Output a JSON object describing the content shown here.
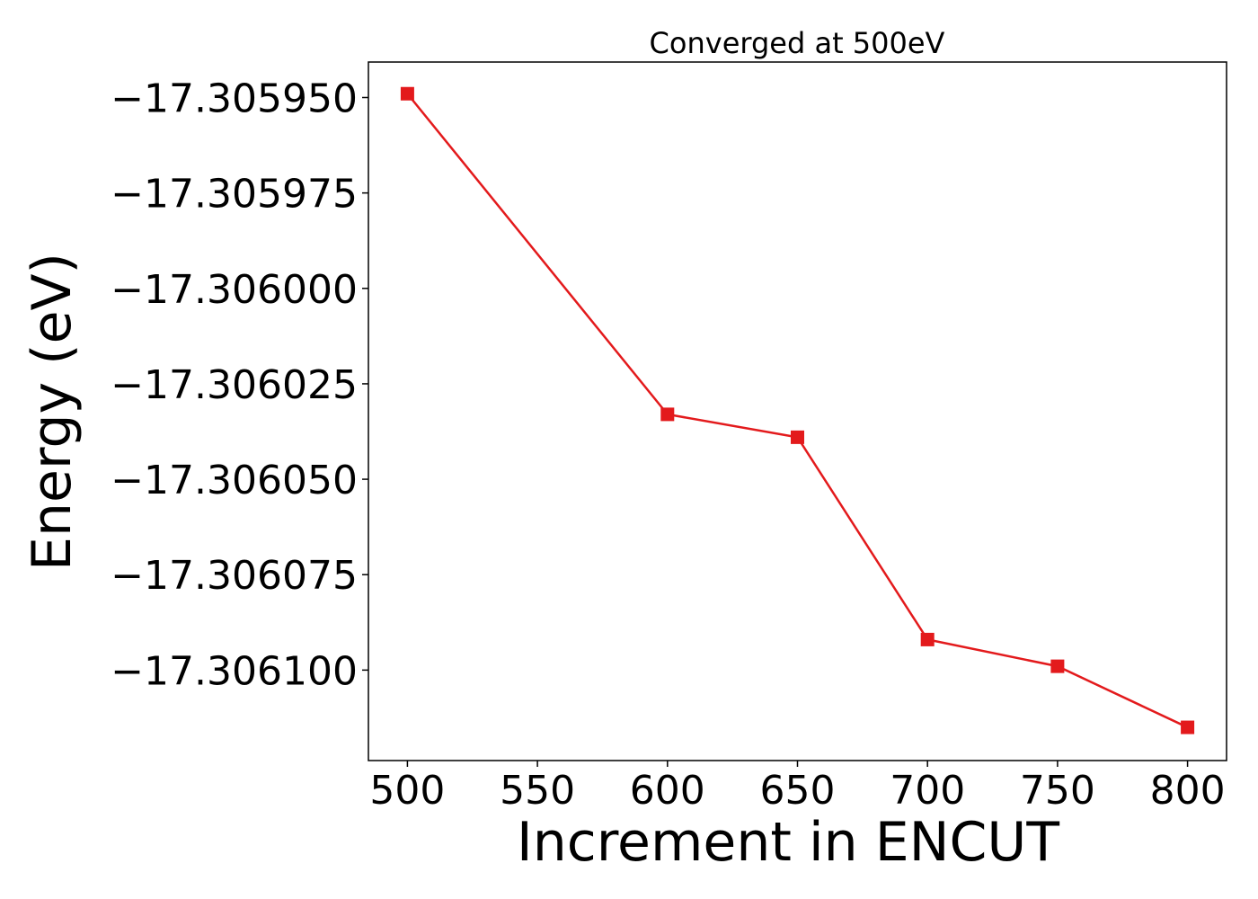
{
  "chart_data": {
    "type": "line",
    "title": "Converged at 500eV",
    "xlabel": "Increment in ENCUT",
    "ylabel": "Energy (eV)",
    "x": [
      500,
      600,
      650,
      700,
      750,
      800
    ],
    "series": [
      {
        "values": [
          -17.305949,
          -17.306033,
          -17.306039,
          -17.306092,
          -17.306099,
          -17.306115
        ],
        "color": "#e31a1c",
        "marker": "square"
      }
    ],
    "xlim": [
      485,
      815
    ],
    "ylim": [
      -17.3061237,
      -17.3059407
    ],
    "xticks": [
      500,
      550,
      600,
      650,
      700,
      750,
      800
    ],
    "xtick_labels": [
      "500",
      "550",
      "600",
      "650",
      "700",
      "750",
      "800"
    ],
    "yticks": [
      -17.30595,
      -17.305975,
      -17.306,
      -17.306025,
      -17.30605,
      -17.306075,
      -17.3061
    ],
    "ytick_labels": [
      "−17.305950",
      "−17.305975",
      "−17.306000",
      "−17.306025",
      "−17.306050",
      "−17.306075",
      "−17.306100"
    ],
    "grid": false,
    "legend": "none"
  }
}
